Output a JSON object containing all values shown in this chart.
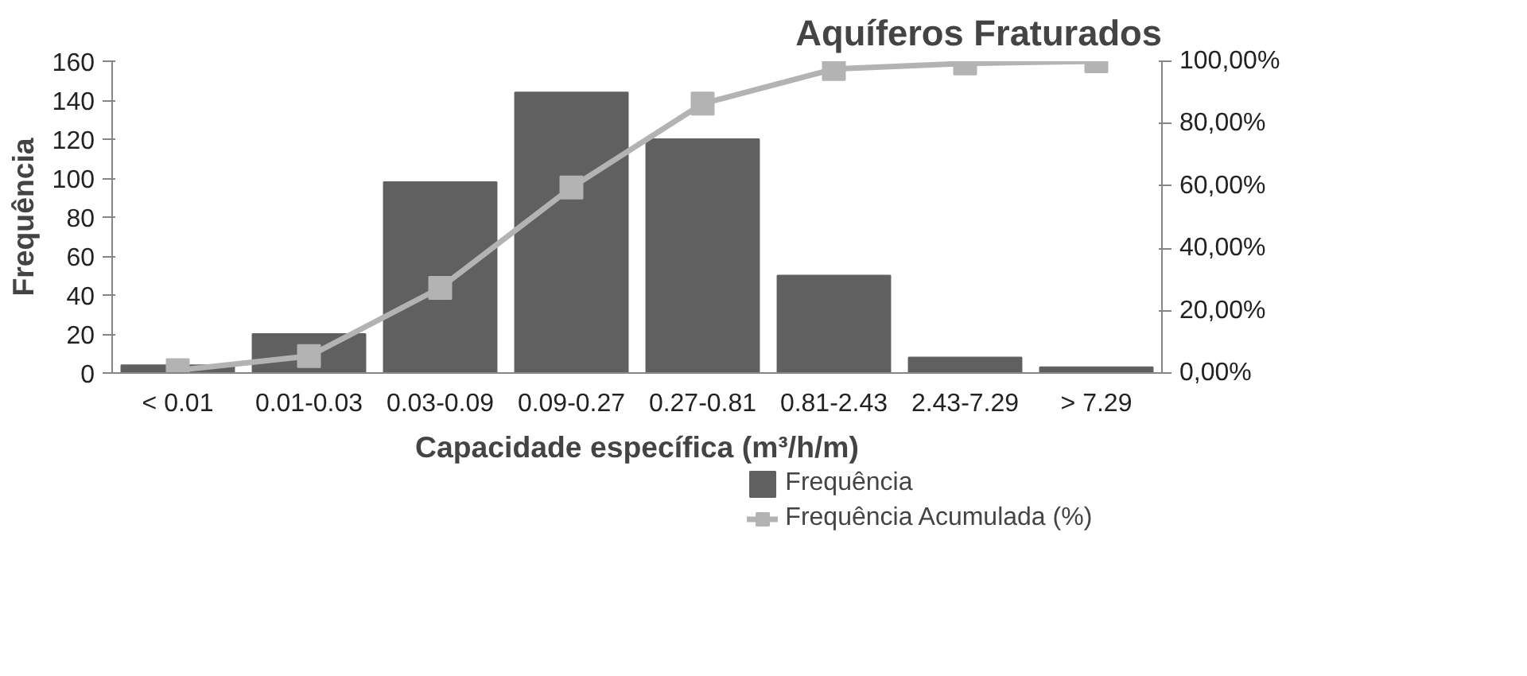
{
  "chart_data": {
    "type": "bar",
    "title": "Aquíferos Fraturados",
    "xlabel": "Capacidade específica (m³/h/m)",
    "ylabel": "Frequência",
    "categories": [
      "< 0.01",
      "0.01-0.03",
      "0.03-0.09",
      "0.09-0.27",
      "0.27-0.81",
      "0.81-2.43",
      "2.43-7.29",
      "> 7.29"
    ],
    "series": [
      {
        "name": "Frequência",
        "color": "#606060",
        "values": [
          4,
          20,
          98,
          144,
          120,
          50,
          8,
          3
        ]
      },
      {
        "name": "Frequência Acumulada (%)",
        "type": "line",
        "axis": "y2",
        "color": "#b3b3b3",
        "marker": "square",
        "values": [
          0.9,
          5.4,
          27.3,
          59.5,
          86.4,
          97.5,
          99.3,
          100
        ]
      }
    ],
    "ylim": [
      0,
      160
    ],
    "yticks": [
      0,
      20,
      40,
      60,
      80,
      100,
      120,
      140,
      160
    ],
    "y2lim": [
      0,
      100
    ],
    "y2ticks": [
      {
        "value": 0,
        "label": "0,00%"
      },
      {
        "value": 20,
        "label": "20,00%"
      },
      {
        "value": 40,
        "label": "40,00%"
      },
      {
        "value": 60,
        "label": "60,00%"
      },
      {
        "value": 80,
        "label": "80,00%"
      },
      {
        "value": 100,
        "label": "100,00%"
      }
    ],
    "grid": false,
    "legend": "bottom right"
  }
}
